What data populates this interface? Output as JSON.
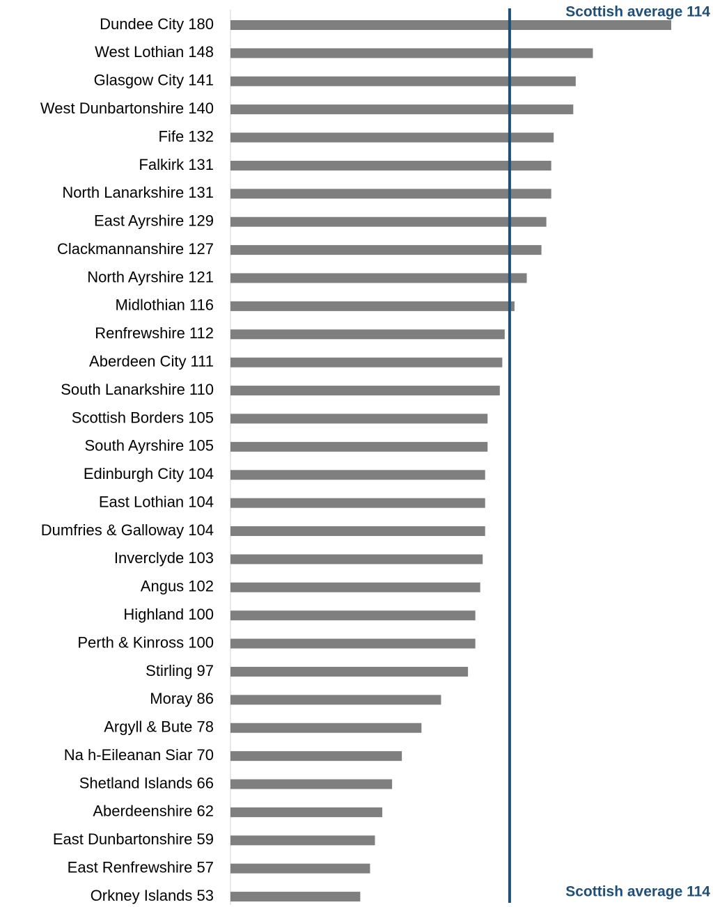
{
  "chart_data": {
    "type": "bar",
    "orientation": "horizontal",
    "categories": [
      "Dundee City 180",
      "West Lothian 148",
      "Glasgow City 141",
      "West Dunbartonshire 140",
      "Fife 132",
      "Falkirk 131",
      "North Lanarkshire 131",
      "East Ayrshire 129",
      "Clackmannanshire 127",
      "North Ayrshire 121",
      "Midlothian 116",
      "Renfrewshire 112",
      "Aberdeen City 111",
      "South Lanarkshire 110",
      "Scottish Borders 105",
      "South Ayrshire 105",
      "Edinburgh City 104",
      "East Lothian 104",
      "Dumfries & Galloway 104",
      "Inverclyde 103",
      "Angus 102",
      "Highland 100",
      "Perth & Kinross 100",
      "Stirling 97",
      "Moray 86",
      "Argyll & Bute 78",
      "Na h-Eileanan Siar 70",
      "Shetland Islands 66",
      "Aberdeenshire 62",
      "East Dunbartonshire 59",
      "East Renfrewshire 57",
      "Orkney Islands 53"
    ],
    "values": [
      180,
      148,
      141,
      140,
      132,
      131,
      131,
      129,
      127,
      121,
      116,
      112,
      111,
      110,
      105,
      105,
      104,
      104,
      104,
      103,
      102,
      100,
      100,
      97,
      86,
      78,
      70,
      66,
      62,
      59,
      57,
      53
    ],
    "color": "#7f7f7f",
    "xlim": [
      0,
      180
    ],
    "reference_line": {
      "value": 114,
      "label": "Scottish average 114",
      "color": "#1f4e79"
    }
  }
}
